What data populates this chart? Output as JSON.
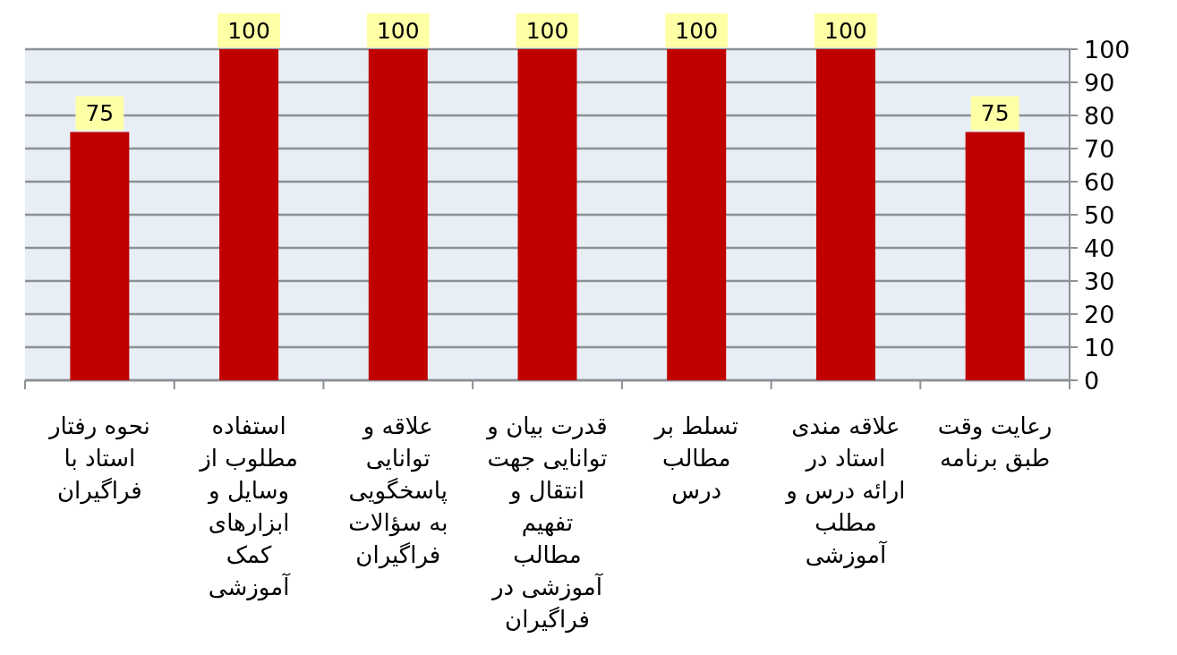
{
  "chart_data": {
    "type": "bar",
    "categories": [
      "نحوه رفتار استاد با فراگیران",
      "استفاده مطلوب از وسایل و ابزارهای کمک آموزشی",
      "علاقه و توانایی پاسخگویی به سؤالات فراگیران",
      "قدرت بیان و توانایی جهت انتقال و تفهیم مطالب آموزشی در فراگیران",
      "تسلط بر مطالب درس",
      "علاقه مندی استاد در ارائه درس و مطلب آموزشی",
      "رعایت وقت طبق برنامه"
    ],
    "values": [
      75,
      100,
      100,
      100,
      100,
      100,
      75
    ],
    "color": "#c00000",
    "ylim": [
      0,
      100
    ],
    "yticks": [
      0,
      10,
      20,
      30,
      40,
      50,
      60,
      70,
      80,
      90,
      100
    ],
    "grid": "y",
    "data_labels": true
  }
}
